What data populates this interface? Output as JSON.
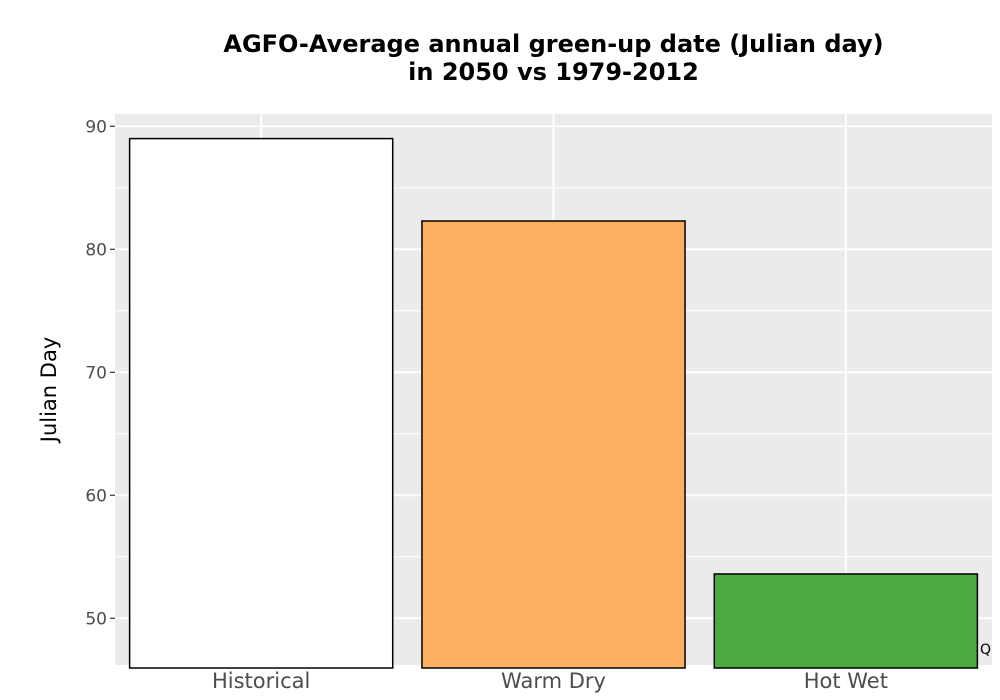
{
  "chart_data": {
    "type": "bar",
    "title_line1": "AGFO-Average annual green-up date (Julian day)",
    "title_line2": "in 2050 vs 1979-2012",
    "xlabel": "",
    "ylabel": "Julian Day",
    "categories": [
      "Historical",
      "Warm Dry",
      "Hot Wet"
    ],
    "values": [
      89,
      82.3,
      53.6
    ],
    "colors": [
      "#ffffff",
      "#fcae61",
      "#4daa40"
    ],
    "bar_outline": "#000000",
    "ylim": [
      46.2,
      91
    ],
    "yticks": [
      50,
      60,
      70,
      80,
      90
    ],
    "ytick_labels": [
      "50",
      "60",
      "70",
      "80",
      "90"
    ],
    "grid": true,
    "panel_background": "#ebebeb",
    "corner_mark": "Q"
  }
}
